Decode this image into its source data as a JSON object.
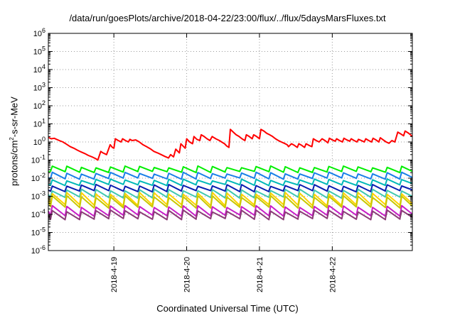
{
  "chart_data": {
    "type": "line",
    "title": "/data/run/goesPlots/archive/2018-04-22/23:00/flux/../flux/5daysMarsFluxes.txt",
    "xlabel": "Coordinated Universal Time (UTC)",
    "ylabel_main": "protons/cm",
    "ylabel_sup": "2",
    "ylabel_tail": "-s-sr-MeV",
    "y_scale": "log",
    "ylim": [
      1e-06,
      1000000.0
    ],
    "xlim_days": [
      0,
      5
    ],
    "grid": true,
    "y_ticks": [
      {
        "base": "10",
        "exp": "-6"
      },
      {
        "base": "10",
        "exp": "-5"
      },
      {
        "base": "10",
        "exp": "-4"
      },
      {
        "base": "10",
        "exp": "-3"
      },
      {
        "base": "10",
        "exp": "-2"
      },
      {
        "base": "10",
        "exp": "-1"
      },
      {
        "base": "10",
        "exp": "0"
      },
      {
        "base": "10",
        "exp": "1"
      },
      {
        "base": "10",
        "exp": "2"
      },
      {
        "base": "10",
        "exp": "3"
      },
      {
        "base": "10",
        "exp": "4"
      },
      {
        "base": "10",
        "exp": "5"
      },
      {
        "base": "10",
        "exp": "6"
      }
    ],
    "x_ticks": [
      {
        "label": "2018-4-19",
        "day": 0.9
      },
      {
        "label": "2018-4-20",
        "day": 1.9
      },
      {
        "label": "2018-4-21",
        "day": 2.9
      },
      {
        "label": "2018-4-22",
        "day": 3.9
      }
    ],
    "series": [
      {
        "color": "#ff0000",
        "points": [
          [
            0,
            1.8
          ],
          [
            0.04,
            1.5
          ],
          [
            0.08,
            1.6
          ],
          [
            0.15,
            1.2
          ],
          [
            0.2,
            1.0
          ],
          [
            0.25,
            0.75
          ],
          [
            0.3,
            0.55
          ],
          [
            0.35,
            0.45
          ],
          [
            0.4,
            0.35
          ],
          [
            0.45,
            0.28
          ],
          [
            0.5,
            0.23
          ],
          [
            0.55,
            0.18
          ],
          [
            0.6,
            0.15
          ],
          [
            0.65,
            0.12
          ],
          [
            0.68,
            0.1
          ],
          [
            0.72,
            0.3
          ],
          [
            0.75,
            0.25
          ],
          [
            0.8,
            0.2
          ],
          [
            0.85,
            0.7
          ],
          [
            0.88,
            0.5
          ],
          [
            0.9,
            0.45
          ],
          [
            0.92,
            1.5
          ],
          [
            0.96,
            1.2
          ],
          [
            1.0,
            1.0
          ],
          [
            1.02,
            1.5
          ],
          [
            1.06,
            1.2
          ],
          [
            1.1,
            1.0
          ],
          [
            1.12,
            1.4
          ],
          [
            1.15,
            1.2
          ],
          [
            1.2,
            1.3
          ],
          [
            1.25,
            1.0
          ],
          [
            1.3,
            0.7
          ],
          [
            1.35,
            0.55
          ],
          [
            1.4,
            0.42
          ],
          [
            1.45,
            0.3
          ],
          [
            1.5,
            0.25
          ],
          [
            1.55,
            0.2
          ],
          [
            1.6,
            0.16
          ],
          [
            1.65,
            0.13
          ],
          [
            1.68,
            0.2
          ],
          [
            1.72,
            0.15
          ],
          [
            1.75,
            0.4
          ],
          [
            1.78,
            0.3
          ],
          [
            1.8,
            0.25
          ],
          [
            1.82,
            0.8
          ],
          [
            1.85,
            0.6
          ],
          [
            1.88,
            0.45
          ],
          [
            1.9,
            1.5
          ],
          [
            1.94,
            1.0
          ],
          [
            1.98,
            0.8
          ],
          [
            2.0,
            2.0
          ],
          [
            2.04,
            1.4
          ],
          [
            2.08,
            1.2
          ],
          [
            2.1,
            2.5
          ],
          [
            2.14,
            2.0
          ],
          [
            2.18,
            1.5
          ],
          [
            2.22,
            1.2
          ],
          [
            2.25,
            2.0
          ],
          [
            2.3,
            1.5
          ],
          [
            2.35,
            1.2
          ],
          [
            2.38,
            1.0
          ],
          [
            2.42,
            0.8
          ],
          [
            2.45,
            0.6
          ],
          [
            2.48,
            0.5
          ],
          [
            2.5,
            5.0
          ],
          [
            2.54,
            3.5
          ],
          [
            2.58,
            2.5
          ],
          [
            2.62,
            2.0
          ],
          [
            2.66,
            1.5
          ],
          [
            2.7,
            1.2
          ],
          [
            2.72,
            2.5
          ],
          [
            2.76,
            2.0
          ],
          [
            2.8,
            1.5
          ],
          [
            2.82,
            2.5
          ],
          [
            2.86,
            2.0
          ],
          [
            2.9,
            1.5
          ],
          [
            2.92,
            5.0
          ],
          [
            2.96,
            4.0
          ],
          [
            3.0,
            3.0
          ],
          [
            3.04,
            2.5
          ],
          [
            3.08,
            2.0
          ],
          [
            3.12,
            1.5
          ],
          [
            3.16,
            1.2
          ],
          [
            3.2,
            1.0
          ],
          [
            3.24,
            0.85
          ],
          [
            3.28,
            0.7
          ],
          [
            3.3,
            0.55
          ],
          [
            3.34,
            0.8
          ],
          [
            3.38,
            0.65
          ],
          [
            3.42,
            0.5
          ],
          [
            3.44,
            0.8
          ],
          [
            3.48,
            0.65
          ],
          [
            3.52,
            0.5
          ],
          [
            3.54,
            0.8
          ],
          [
            3.58,
            0.65
          ],
          [
            3.62,
            0.55
          ],
          [
            3.64,
            1.5
          ],
          [
            3.68,
            1.2
          ],
          [
            3.72,
            1.0
          ],
          [
            3.76,
            1.5
          ],
          [
            3.8,
            1.2
          ],
          [
            3.84,
            0.9
          ],
          [
            3.86,
            1.6
          ],
          [
            3.9,
            1.3
          ],
          [
            3.94,
            1.1
          ],
          [
            3.96,
            1.5
          ],
          [
            4.0,
            1.2
          ],
          [
            4.04,
            1.0
          ],
          [
            4.06,
            1.6
          ],
          [
            4.1,
            1.3
          ],
          [
            4.14,
            1.1
          ],
          [
            4.16,
            1.5
          ],
          [
            4.2,
            1.2
          ],
          [
            4.24,
            1.0
          ],
          [
            4.26,
            1.4
          ],
          [
            4.3,
            1.2
          ],
          [
            4.34,
            1.0
          ],
          [
            4.36,
            1.5
          ],
          [
            4.4,
            1.2
          ],
          [
            4.44,
            1.0
          ],
          [
            4.46,
            1.6
          ],
          [
            4.5,
            1.3
          ],
          [
            4.54,
            1.0
          ],
          [
            4.56,
            1.7
          ],
          [
            4.6,
            1.3
          ],
          [
            4.64,
            1.0
          ],
          [
            4.68,
            0.85
          ],
          [
            4.72,
            1.2
          ],
          [
            4.76,
            1.0
          ],
          [
            4.8,
            3.5
          ],
          [
            4.84,
            2.8
          ],
          [
            4.88,
            2.2
          ],
          [
            4.9,
            4.0
          ],
          [
            4.94,
            3.2
          ],
          [
            4.97,
            2.6
          ],
          [
            5.0,
            2.0
          ]
        ]
      },
      {
        "color": "#00ee00",
        "base": 0.022,
        "drop": 1.9
      },
      {
        "color": "#1a7fe8",
        "base": 0.0095,
        "drop": 2.0
      },
      {
        "color": "#00b8b8",
        "base": 0.0042,
        "drop": 1.9
      },
      {
        "color": "#0a1fb0",
        "base": 0.0019,
        "drop": 2.1
      },
      {
        "color": "#40c8b0",
        "base": 0.00085,
        "drop": 2.6
      },
      {
        "color": "#ffd200",
        "base": 0.00032,
        "drop": 4.5
      },
      {
        "color": "#c8c800",
        "base": 0.00024,
        "drop": 4.0
      },
      {
        "color": "#c81ec8",
        "base": 8.5e-05,
        "drop": 3.2
      },
      {
        "color": "#8c3c78",
        "base": 5.5e-05,
        "drop": 2.8
      }
    ],
    "series_period_days": 0.2
  }
}
